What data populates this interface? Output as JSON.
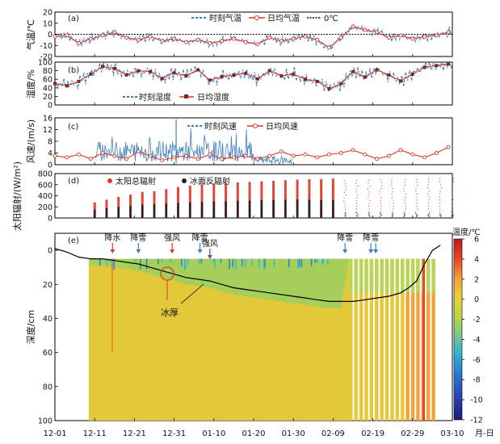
{
  "chart_data": [
    {
      "panel": "(a)",
      "type": "line",
      "ylabel": "气温/℃",
      "ylim": [
        -20,
        20
      ],
      "yticks": [
        -20,
        -10,
        0,
        10,
        20
      ],
      "legend": [
        "时刻气温",
        "日均气温",
        "0℃"
      ],
      "legend_position": "top-right",
      "x_day_range": [
        0,
        100
      ],
      "series": [
        {
          "name": "日均气温",
          "x_day": [
            0,
            3,
            6,
            9,
            12,
            15,
            18,
            21,
            24,
            27,
            30,
            33,
            36,
            39,
            42,
            45,
            48,
            51,
            54,
            57,
            60,
            63,
            66,
            69,
            72,
            75,
            78,
            81,
            84,
            87,
            90,
            93,
            96,
            99
          ],
          "values": [
            -2,
            -1,
            -8,
            -4,
            -1,
            2,
            -3,
            -5,
            -2,
            -6,
            -4,
            -7,
            -5,
            -8,
            -6,
            -4,
            -7,
            -9,
            -3,
            -6,
            -4,
            -2,
            -5,
            -12,
            -3,
            7,
            4,
            2,
            -3,
            -1,
            -4,
            -2,
            -1,
            2
          ]
        }
      ]
    },
    {
      "panel": "(b)",
      "type": "line",
      "ylabel": "湿度/%",
      "ylim": [
        0,
        100
      ],
      "yticks": [
        0,
        20,
        40,
        60,
        80,
        100
      ],
      "legend": [
        "时刻湿度",
        "日均湿度"
      ],
      "legend_position": "bottom-center",
      "series": [
        {
          "name": "日均湿度",
          "x_day": [
            0,
            3,
            6,
            9,
            12,
            15,
            18,
            21,
            24,
            27,
            30,
            33,
            36,
            39,
            42,
            45,
            48,
            51,
            54,
            57,
            60,
            63,
            66,
            69,
            72,
            75,
            78,
            81,
            84,
            87,
            90,
            93,
            96,
            99
          ],
          "values": [
            50,
            45,
            55,
            72,
            90,
            85,
            70,
            80,
            78,
            62,
            75,
            68,
            82,
            58,
            66,
            70,
            74,
            61,
            80,
            68,
            72,
            60,
            55,
            38,
            50,
            78,
            65,
            82,
            70,
            56,
            72,
            88,
            92,
            96
          ]
        }
      ]
    },
    {
      "panel": "(c)",
      "type": "line",
      "ylabel": "风速/(m/s)",
      "ylim": [
        0,
        16
      ],
      "yticks": [
        0,
        4,
        8,
        12,
        16
      ],
      "legend": [
        "时刻风速",
        "日均风速"
      ],
      "legend_position": "top-right",
      "series": [
        {
          "name": "日均风速",
          "x_day": [
            0,
            3,
            6,
            9,
            12,
            15,
            18,
            21,
            24,
            27,
            30,
            33,
            36,
            39,
            42,
            45,
            48,
            51,
            54,
            57,
            60,
            63,
            66,
            69,
            72,
            75,
            78,
            81,
            84,
            87,
            90,
            93,
            96,
            99
          ],
          "values": [
            3,
            2.5,
            3.5,
            2,
            4,
            3,
            2,
            4.5,
            3,
            1.5,
            2.5,
            3,
            2,
            3.5,
            2,
            2.5,
            3,
            2,
            3,
            4.5,
            3,
            3.5,
            2.5,
            3.5,
            4,
            5,
            3.5,
            2,
            3,
            5,
            3.5,
            2.5,
            4,
            6
          ]
        }
      ]
    },
    {
      "panel": "(d)",
      "type": "bar",
      "ylabel": "太阳辐射/(W/m²)",
      "ylim": [
        0,
        800
      ],
      "yticks": [
        0,
        200,
        400,
        600,
        800
      ],
      "legend": [
        "太阳总辐射",
        "冰面反辐射"
      ],
      "legend_position": "top-left",
      "series": [
        {
          "name": "太阳总辐射",
          "note": "daily peaks",
          "x_day_range": [
            10,
            100
          ],
          "values": [
            280,
            330,
            380,
            420,
            470,
            480,
            520,
            560,
            580,
            600,
            620,
            630,
            640,
            650,
            660,
            670,
            680,
            690,
            700,
            700,
            710,
            720,
            730,
            730,
            740,
            740,
            750,
            750,
            760,
            760,
            770
          ]
        },
        {
          "name": "冰面反辐射",
          "x_day_range": [
            10,
            100
          ],
          "values": [
            150,
            180,
            200,
            220,
            240,
            250,
            260,
            270,
            280,
            290,
            300,
            300,
            310,
            310,
            320,
            320,
            330,
            330,
            330,
            320,
            320,
            310,
            300,
            290,
            280,
            270,
            260,
            250,
            240,
            230,
            220
          ]
        }
      ]
    },
    {
      "panel": "(e)",
      "type": "heatmap",
      "ylabel": "深度/cm",
      "ylim": [
        100,
        -10
      ],
      "yticks": [
        0,
        20,
        40,
        60,
        80,
        100
      ],
      "colorbar_label": "温度/℃",
      "colorbar_range": [
        -12,
        6
      ],
      "colorbar_ticks": [
        6,
        4,
        2,
        0,
        -2,
        -4,
        -6,
        -8,
        -10,
        -12
      ],
      "ice_thickness_label": "冰厚",
      "ice_thickness": {
        "x_day": [
          0,
          3,
          6,
          9,
          12,
          15,
          18,
          21,
          24,
          27,
          30,
          33,
          36,
          39,
          42,
          45,
          48,
          51,
          54,
          57,
          60,
          63,
          66,
          69,
          72,
          75,
          78,
          81,
          84,
          87,
          89,
          91,
          93,
          95,
          97
        ],
        "values": [
          -1,
          1,
          4,
          5,
          5,
          6,
          7,
          8,
          10,
          12,
          14,
          16,
          17,
          18,
          20,
          22,
          23,
          24,
          25,
          26,
          27,
          28,
          29,
          30,
          30,
          30,
          29,
          28,
          27,
          25,
          22,
          18,
          8,
          0,
          -3
        ]
      },
      "events": [
        {
          "label": "降水",
          "x_day": 14.5,
          "color": "#d93a2b"
        },
        {
          "label": "降雪",
          "x_day": 21,
          "color": "#3f7fbf"
        },
        {
          "label": "强风",
          "x_day": 29.5,
          "color": "#d93a2b"
        },
        {
          "label": "降雪",
          "x_day": 36.5,
          "color": "#3f7fbf"
        },
        {
          "label": "强风",
          "x_day": 39,
          "color": "#8a3fa0"
        },
        {
          "label": "降雪",
          "x_day": 73,
          "color": "#3f7fbf"
        },
        {
          "label": "降雪",
          "x_day": 79.5,
          "color": "#3f7fbf"
        }
      ]
    }
  ],
  "xaxis": {
    "ticks": [
      "12-01",
      "12-11",
      "12-21",
      "12-31",
      "01-10",
      "01-20",
      "01-30",
      "02-09",
      "02-19",
      "02-29",
      "03-10"
    ],
    "unit_label": "月-日"
  },
  "colors": {
    "hourly": "#3f7fbf",
    "daily": "#d93a2b",
    "marker_b": "#7a2b1e",
    "reflect": "#222222",
    "ice_line": "#000000"
  }
}
